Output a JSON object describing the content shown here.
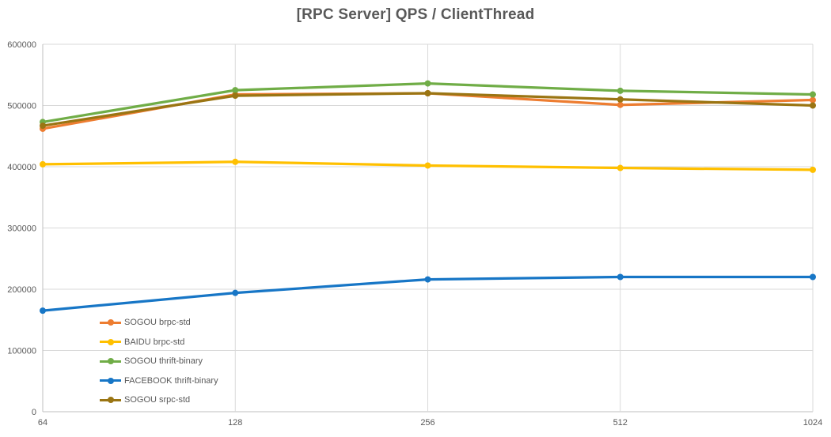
{
  "chart_data": {
    "type": "line",
    "title": "[RPC Server] QPS / ClientThread",
    "xlabel": "",
    "ylabel": "",
    "x_categories": [
      "64",
      "128",
      "256",
      "512",
      "1024"
    ],
    "y_ticks": [
      0,
      100000,
      200000,
      300000,
      400000,
      500000,
      600000
    ],
    "ylim": [
      0,
      600000
    ],
    "grid": true,
    "legend_position": "inside-bottom-left",
    "series": [
      {
        "name": "SOGOU brpc-std",
        "color": "#ED7D31",
        "values": [
          462000,
          518000,
          520000,
          501000,
          509000
        ]
      },
      {
        "name": "BAIDU brpc-std",
        "color": "#FFC000",
        "values": [
          404000,
          408000,
          402000,
          398000,
          395000
        ]
      },
      {
        "name": "SOGOU thrift-binary",
        "color": "#70AD47",
        "values": [
          473000,
          525000,
          536000,
          524000,
          518000
        ]
      },
      {
        "name": "FACEBOOK thrift-binary",
        "color": "#1776C6",
        "values": [
          165000,
          194000,
          216000,
          220000,
          220000
        ]
      },
      {
        "name": "SOGOU srpc-std",
        "color": "#9A7513",
        "values": [
          467000,
          516000,
          520000,
          510000,
          500000
        ]
      }
    ],
    "colors": {
      "gridline": "#D9D9D9",
      "axis_line": "#BFBFBF",
      "tick_text": "#595959",
      "title_text": "#595959",
      "background": "#FFFFFF"
    }
  }
}
